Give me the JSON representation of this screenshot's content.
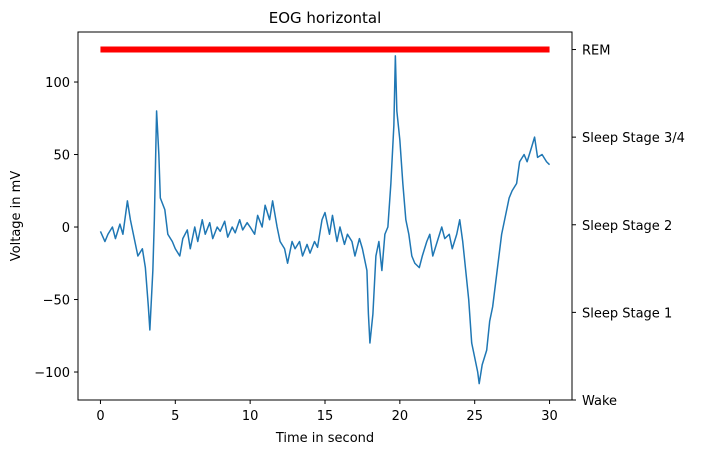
{
  "chart_data": {
    "type": "line",
    "title": "EOG horizontal",
    "x_label": "Time in second",
    "y_label": "Voltage in mV",
    "xlim": [
      -1.5,
      31.5
    ],
    "xticks": [
      0,
      5,
      10,
      15,
      20,
      25,
      30
    ],
    "ylim": [
      -119.3,
      134.5
    ],
    "yticks": [
      {
        "value": -100,
        "label": "−100"
      },
      {
        "value": -50,
        "label": "−50"
      },
      0,
      50,
      100
    ],
    "y2lim": [
      0,
      4.2
    ],
    "y2ticks": [
      {
        "value": 0,
        "label": "Wake"
      },
      {
        "value": 1,
        "label": "Sleep Stage 1"
      },
      {
        "value": 2,
        "label": "Sleep Stage 2"
      },
      {
        "value": 3,
        "label": "Sleep Stage 3/4"
      },
      {
        "value": 4,
        "label": "REM"
      }
    ],
    "grid": false,
    "series": [
      {
        "color": "#1f77b4",
        "linewidth": 1.5,
        "x": [
          0,
          0.3,
          0.5,
          0.8,
          1,
          1.3,
          1.5,
          1.8,
          2,
          2.3,
          2.5,
          2.8,
          3,
          3.2,
          3.3,
          3.5,
          3.6,
          3.75,
          3.9,
          4,
          4.3,
          4.5,
          4.8,
          5,
          5.3,
          5.5,
          5.8,
          6,
          6.3,
          6.5,
          6.8,
          7,
          7.3,
          7.5,
          7.8,
          8,
          8.3,
          8.5,
          8.8,
          9,
          9.3,
          9.5,
          9.8,
          10,
          10.3,
          10.5,
          10.8,
          11,
          11.3,
          11.5,
          11.8,
          12,
          12.3,
          12.5,
          12.8,
          13,
          13.3,
          13.5,
          13.8,
          14,
          14.3,
          14.5,
          14.8,
          15,
          15.3,
          15.5,
          15.8,
          16,
          16.3,
          16.5,
          16.8,
          17,
          17.3,
          17.5,
          17.8,
          17.9,
          18,
          18.2,
          18.4,
          18.6,
          18.8,
          19,
          19.2,
          19.4,
          19.6,
          19.7,
          19.8,
          20,
          20.2,
          20.4,
          20.6,
          20.8,
          21,
          21.3,
          21.5,
          21.8,
          22,
          22.2,
          22.5,
          22.8,
          23,
          23.3,
          23.5,
          23.8,
          24,
          24.2,
          24.4,
          24.6,
          24.8,
          25,
          25.2,
          25.3,
          25.5,
          25.8,
          26,
          26.2,
          26.5,
          26.8,
          27,
          27.3,
          27.5,
          27.8,
          28,
          28.3,
          28.5,
          28.8,
          29,
          29.2,
          29.5,
          29.8,
          30
        ],
        "values": [
          -3,
          -10,
          -5,
          0,
          -8,
          2,
          -5,
          18,
          5,
          -10,
          -20,
          -15,
          -28,
          -55,
          -71,
          -30,
          5,
          80,
          50,
          20,
          12,
          -5,
          -10,
          -15,
          -20,
          -8,
          -2,
          -15,
          0,
          -10,
          5,
          -5,
          3,
          -8,
          0,
          -3,
          4,
          -7,
          0,
          -4,
          5,
          -2,
          3,
          0,
          -5,
          8,
          0,
          15,
          5,
          18,
          0,
          -10,
          -15,
          -25,
          -10,
          -15,
          -10,
          -20,
          -12,
          -18,
          -10,
          -14,
          5,
          10,
          -5,
          8,
          -10,
          0,
          -12,
          -5,
          -10,
          -20,
          -8,
          -15,
          -30,
          -60,
          -80,
          -60,
          -20,
          -10,
          -30,
          -5,
          0,
          30,
          70,
          118,
          80,
          60,
          30,
          5,
          -5,
          -20,
          -25,
          -28,
          -20,
          -10,
          -5,
          -20,
          -10,
          0,
          -8,
          -5,
          -15,
          -5,
          5,
          -10,
          -30,
          -50,
          -80,
          -90,
          -100,
          -108,
          -95,
          -85,
          -65,
          -55,
          -30,
          -5,
          5,
          20,
          25,
          30,
          45,
          50,
          45,
          55,
          62,
          48,
          50,
          45,
          43
        ]
      },
      {
        "color": "#ff0000",
        "linewidth": 6,
        "axis": "y2",
        "x": [
          0,
          30
        ],
        "values": [
          4,
          4
        ]
      }
    ]
  }
}
